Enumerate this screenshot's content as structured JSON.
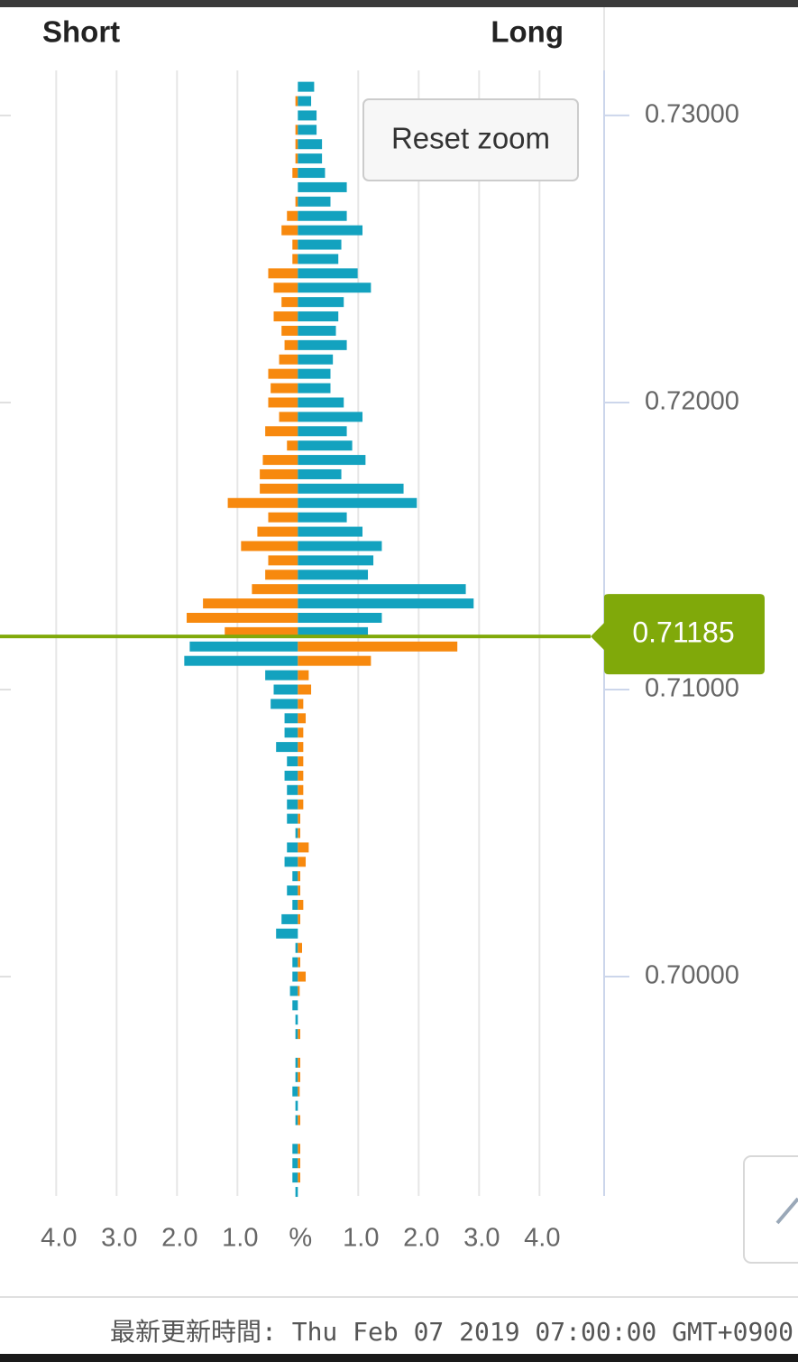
{
  "chart_data": {
    "type": "butterfly-bar",
    "header_left": "Short",
    "header_right": "Long",
    "reset_button": "Reset zoom",
    "footer": "最新更新時間: Thu Feb 07 2019 07:00:00 GMT+0900",
    "current_price": 0.71185,
    "current_price_color": "#80a90a",
    "levels": [
      0.731,
      0.7305,
      0.73,
      0.7295,
      0.729,
      0.7285,
      0.728,
      0.7275,
      0.727,
      0.7265,
      0.726,
      0.7255,
      0.725,
      0.7245,
      0.724,
      0.7235,
      0.723,
      0.7225,
      0.722,
      0.7215,
      0.721,
      0.7205,
      0.72,
      0.7195,
      0.719,
      0.7185,
      0.718,
      0.7175,
      0.717,
      0.7165,
      0.716,
      0.7155,
      0.715,
      0.7145,
      0.714,
      0.7135,
      0.713,
      0.7125,
      0.712,
      0.7115,
      0.711,
      0.7105,
      0.71,
      0.7095,
      0.709,
      0.7085,
      0.708,
      0.7075,
      0.707,
      0.7065,
      0.706,
      0.7055,
      0.705,
      0.7045,
      0.704,
      0.7035,
      0.703,
      0.7025,
      0.702,
      0.7015,
      0.701,
      0.7005,
      0.7,
      0.6995,
      0.699,
      0.6985,
      0.698,
      0.6975,
      0.697,
      0.6965,
      0.696,
      0.6955,
      0.695,
      0.6945,
      0.694,
      0.6935,
      0.693,
      0.6925
    ],
    "series": [
      {
        "name": "Short",
        "direction": "left",
        "color_above_price": "#f7890e",
        "color_below_price": "#13a2bf",
        "values": [
          0,
          0.04,
          0,
          0.04,
          0.04,
          0.04,
          0.09,
          0,
          0.04,
          0.18,
          0.27,
          0.09,
          0.09,
          0.49,
          0.4,
          0.27,
          0.4,
          0.27,
          0.22,
          0.31,
          0.49,
          0.45,
          0.49,
          0.31,
          0.54,
          0.18,
          0.58,
          0.63,
          0.63,
          1.16,
          0.49,
          0.67,
          0.94,
          0.49,
          0.54,
          0.76,
          1.57,
          1.84,
          1.21,
          1.79,
          1.88,
          0.54,
          0.4,
          0.45,
          0.22,
          0.22,
          0.36,
          0.18,
          0.22,
          0.18,
          0.18,
          0.18,
          0.04,
          0.18,
          0.22,
          0.09,
          0.18,
          0.09,
          0.27,
          0.36,
          0.04,
          0.09,
          0.09,
          0.13,
          0.09,
          0.04,
          0.04,
          0,
          0.04,
          0.04,
          0.09,
          0.04,
          0.04,
          0,
          0.09,
          0.09,
          0.09,
          0.04
        ]
      },
      {
        "name": "Long",
        "direction": "right",
        "color_above_price": "#13a2bf",
        "color_below_price": "#f7890e",
        "values": [
          0.27,
          0.22,
          0.31,
          0.31,
          0.4,
          0.4,
          0.45,
          0.81,
          0.54,
          0.81,
          1.07,
          0.72,
          0.67,
          0.99,
          1.21,
          0.76,
          0.67,
          0.63,
          0.81,
          0.58,
          0.54,
          0.54,
          0.76,
          1.07,
          0.81,
          0.9,
          1.12,
          0.72,
          1.75,
          1.97,
          0.81,
          1.07,
          1.39,
          1.25,
          1.16,
          2.78,
          2.91,
          1.39,
          1.16,
          2.64,
          1.21,
          0.18,
          0.22,
          0.09,
          0.13,
          0.09,
          0.09,
          0.09,
          0.09,
          0.09,
          0.09,
          0.04,
          0.04,
          0.18,
          0.13,
          0.04,
          0.04,
          0.09,
          0.04,
          0,
          0.07,
          0.04,
          0.13,
          0.03,
          0,
          0,
          0.04,
          0,
          0.04,
          0.04,
          0.03,
          0,
          0.04,
          0,
          0.04,
          0.04,
          0.04,
          0
        ]
      }
    ],
    "xlim": [
      -4.93,
      5.07
    ],
    "xticks": [
      {
        "value": -4,
        "label": "4.0"
      },
      {
        "value": -3,
        "label": "3.0"
      },
      {
        "value": -2,
        "label": "2.0"
      },
      {
        "value": -1,
        "label": "1.0"
      },
      {
        "value": 0,
        "label": "%"
      },
      {
        "value": 1,
        "label": "1.0"
      },
      {
        "value": 2,
        "label": "2.0"
      },
      {
        "value": 3,
        "label": "3.0"
      },
      {
        "value": 4,
        "label": "4.0"
      }
    ],
    "ylim": [
      0.69236,
      0.73157
    ],
    "yticks": [
      {
        "value": 0.73,
        "label": "0.73000"
      },
      {
        "value": 0.72,
        "label": "0.72000"
      },
      {
        "value": 0.71,
        "label": "0.71000"
      },
      {
        "value": 0.7,
        "label": "0.70000"
      }
    ],
    "grid": true
  }
}
